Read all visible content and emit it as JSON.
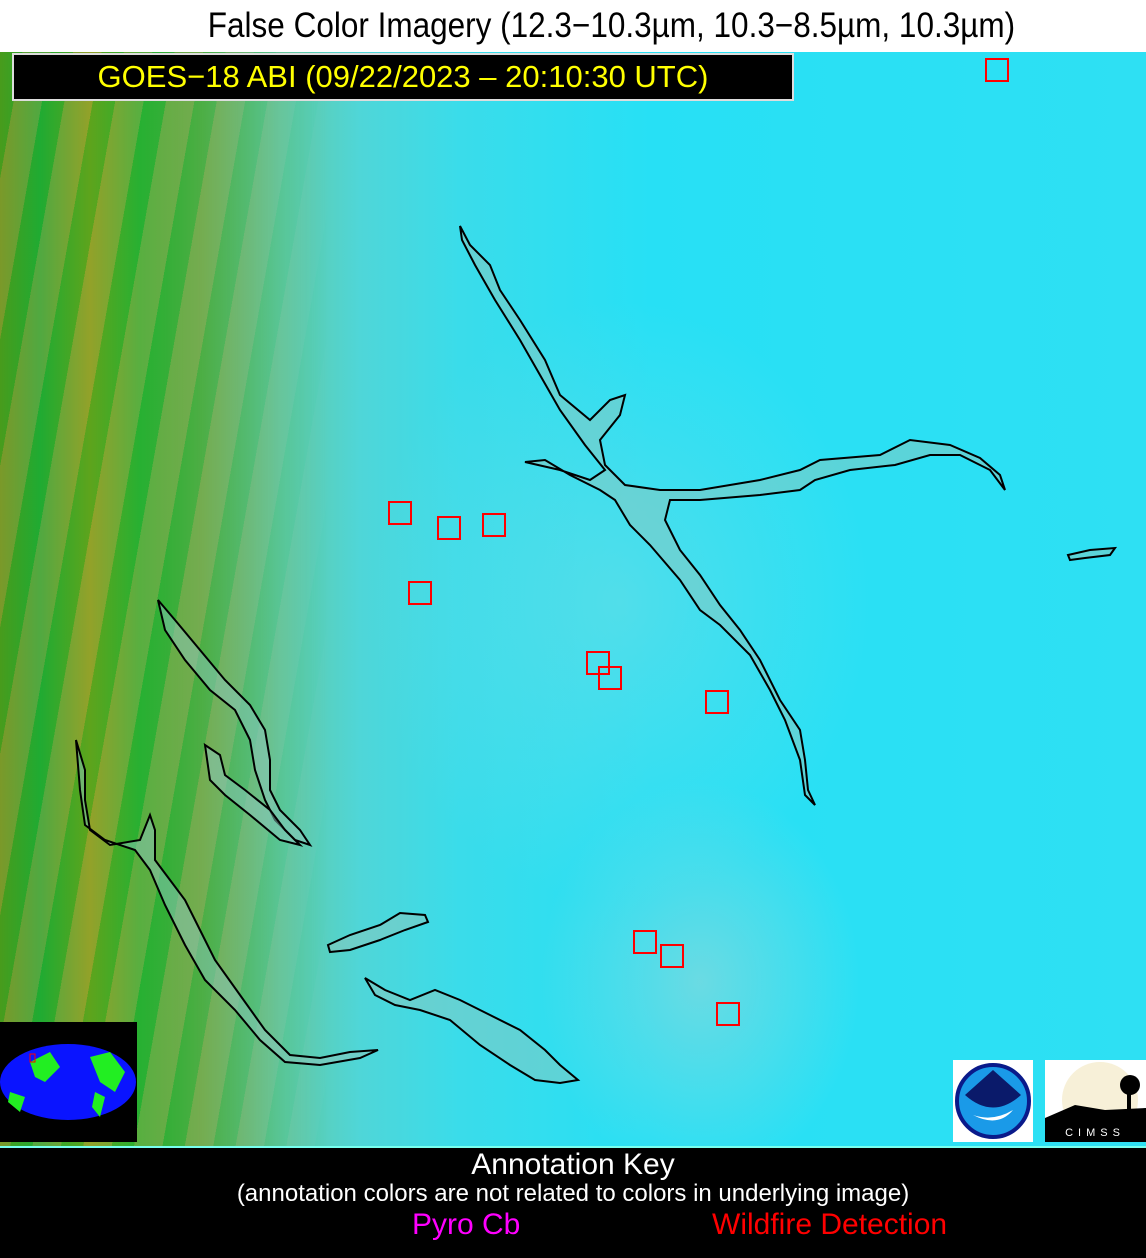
{
  "header": {
    "title": "False Color Imagery (12.3−10.3µm, 10.3−8.5µm, 10.3µm)",
    "subtitle": "GOES−18 ABI (09/22/2023 – 20:10:30 UTC)"
  },
  "logos": {
    "noaa": "NOAA",
    "cimss": "CIMSS"
  },
  "key": {
    "title": "Annotation Key",
    "note": "(annotation colors are not related to colors in underlying image)",
    "items": [
      {
        "label": "Pyro Cb",
        "color": "#ff00ff"
      },
      {
        "label": "Wildfire Detection",
        "color": "#ff0000"
      }
    ]
  },
  "colors": {
    "fire_box": "#ff0000",
    "lake_outline": "#000000",
    "subtitle_text": "#ffff00"
  }
}
